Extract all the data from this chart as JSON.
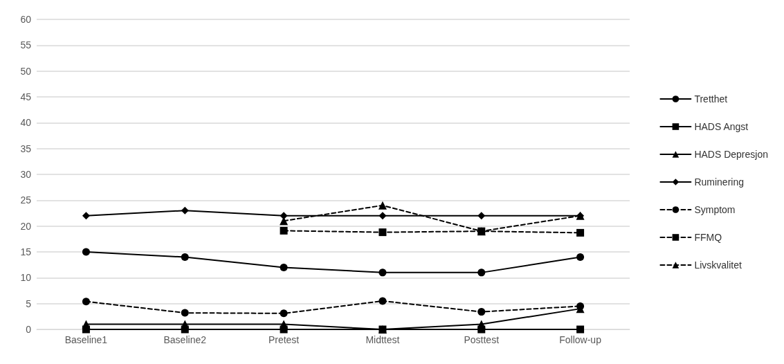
{
  "chart_data": {
    "type": "line",
    "categories": [
      "Baseline1",
      "Baseline2",
      "Pretest",
      "Midttest",
      "Posttest",
      "Follow-up"
    ],
    "series": [
      {
        "name": "Tretthet",
        "color": "#000000",
        "marker": "circle",
        "line_style": "solid",
        "values": [
          15,
          14,
          12,
          11,
          11,
          14
        ]
      },
      {
        "name": "HADS Angst",
        "color": "#000000",
        "marker": "square",
        "line_style": "solid",
        "values": [
          0,
          0,
          0,
          0,
          0,
          0
        ]
      },
      {
        "name": "HADS Depresjon",
        "color": "#000000",
        "marker": "triangle",
        "line_style": "solid",
        "values": [
          1,
          1,
          1,
          0,
          1,
          4
        ]
      },
      {
        "name": "Ruminering",
        "color": "#000000",
        "marker": "diamond",
        "line_style": "solid",
        "values": [
          22,
          23,
          22,
          22,
          22,
          22
        ]
      },
      {
        "name": "Symptom",
        "color": "#000000",
        "marker": "circle",
        "line_style": "dashed",
        "values": [
          5.4,
          3.2,
          3.1,
          5.5,
          3.4,
          4.5
        ]
      },
      {
        "name": "FFMQ",
        "color": "#000000",
        "marker": "square",
        "line_style": "dashed",
        "values": [
          null,
          null,
          19.1,
          18.8,
          19,
          18.7
        ]
      },
      {
        "name": "Livskvalitet",
        "color": "#000000",
        "marker": "triangle",
        "line_style": "dashed",
        "values": [
          null,
          null,
          21,
          24,
          19,
          22
        ]
      }
    ],
    "ylim": [
      0,
      60
    ],
    "yticks": [
      0,
      5,
      10,
      15,
      20,
      25,
      30,
      35,
      40,
      45,
      50,
      55,
      60
    ],
    "grid": "y",
    "legend": "right"
  }
}
